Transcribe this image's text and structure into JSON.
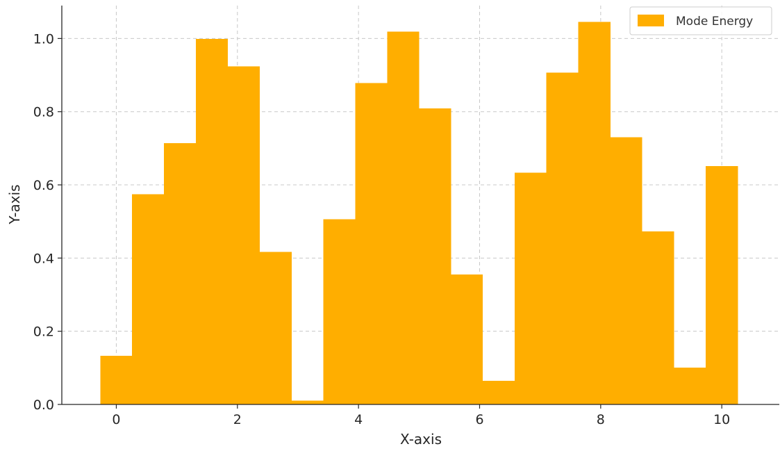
{
  "chart_data": {
    "type": "bar",
    "title": "",
    "xlabel": "X-axis",
    "ylabel": "Y-axis",
    "xlim": [
      -0.9,
      10.95
    ],
    "ylim": [
      0,
      1.09
    ],
    "xticks": [
      0,
      2,
      4,
      6,
      8,
      10
    ],
    "yticks": [
      0.0,
      0.2,
      0.4,
      0.6,
      0.8,
      1.0
    ],
    "ytick_labels": [
      "0.0",
      "0.2",
      "0.4",
      "0.6",
      "0.8",
      "1.0"
    ],
    "grid": true,
    "legend_position": "top-right",
    "bar_width": 0.53,
    "series": [
      {
        "name": "Mode Energy",
        "color": "#FFAE00",
        "x": [
          0.0,
          0.526,
          1.053,
          1.579,
          2.105,
          2.632,
          3.158,
          3.684,
          4.211,
          4.737,
          5.263,
          5.789,
          6.316,
          6.842,
          7.368,
          7.895,
          8.421,
          8.947,
          9.474,
          10.0
        ],
        "values": [
          0.133,
          0.574,
          0.714,
          0.999,
          0.924,
          0.417,
          0.01,
          0.506,
          0.878,
          1.019,
          0.809,
          0.355,
          0.065,
          0.633,
          0.907,
          1.045,
          0.73,
          0.473,
          0.101,
          0.651
        ]
      }
    ]
  }
}
